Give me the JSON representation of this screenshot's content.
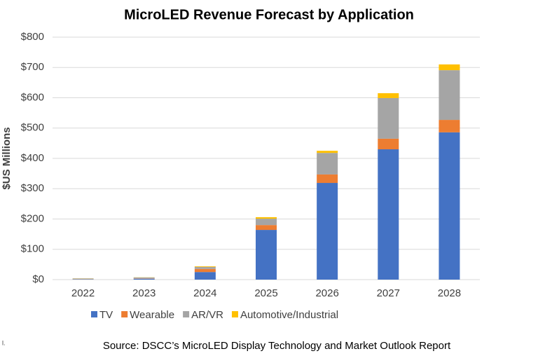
{
  "chart_data": {
    "type": "stacked-bar",
    "title": "MicroLED Revenue Forecast by Application",
    "y_label": "$US Millions",
    "categories": [
      "2022",
      "2023",
      "2024",
      "2025",
      "2026",
      "2027",
      "2028"
    ],
    "series": [
      {
        "name": "TV",
        "color": "#4472c4",
        "values": [
          1,
          3,
          25,
          164,
          319,
          430,
          486
        ]
      },
      {
        "name": "Wearable",
        "color": "#ed7d31",
        "values": [
          0.5,
          1,
          10,
          16,
          28,
          35,
          41
        ]
      },
      {
        "name": "AR/VR",
        "color": "#a5a5a5",
        "values": [
          2,
          3,
          7,
          21,
          71,
          134,
          164
        ]
      },
      {
        "name": "Automotive/Industrial",
        "color": "#ffc000",
        "values": [
          0.5,
          0.5,
          2,
          5,
          7,
          16,
          19
        ]
      }
    ],
    "ylim": [
      0,
      800
    ],
    "yticks": [
      {
        "value": 0,
        "label": "$0"
      },
      {
        "value": 100,
        "label": "$100"
      },
      {
        "value": 200,
        "label": "$200"
      },
      {
        "value": 300,
        "label": "$300"
      },
      {
        "value": 400,
        "label": "$400"
      },
      {
        "value": 500,
        "label": "$500"
      },
      {
        "value": 600,
        "label": "$600"
      },
      {
        "value": 700,
        "label": "$700"
      },
      {
        "value": 800,
        "label": "$800"
      }
    ],
    "grid": true,
    "legend": "bottom",
    "source": "Source: DSCC’s MicroLED Display Technology and Market Outlook Report",
    "fragment": "l."
  }
}
